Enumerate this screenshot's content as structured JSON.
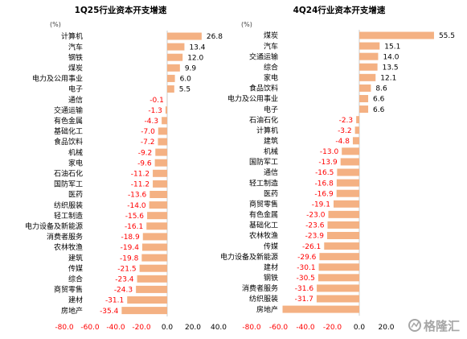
{
  "chart_data": [
    {
      "type": "bar",
      "orientation": "horizontal",
      "title": "1Q25行业资本开支增速",
      "unit": "(%)",
      "categories": [
        "计算机",
        "汽车",
        "钢铁",
        "煤炭",
        "电力及公用事业",
        "电子",
        "通信",
        "交通运输",
        "有色金属",
        "基础化工",
        "食品饮料",
        "机械",
        "家电",
        "石油石化",
        "国防军工",
        "医药",
        "纺织服装",
        "轻工制造",
        "电力设备及新能源",
        "消费者服务",
        "农林牧渔",
        "建筑",
        "传媒",
        "综合",
        "商贸零售",
        "建材",
        "房地产"
      ],
      "values": [
        26.8,
        13.4,
        12.0,
        9.9,
        6.0,
        5.5,
        -0.1,
        -1.3,
        -4.3,
        -7.0,
        -7.2,
        -9.2,
        -9.6,
        -11.2,
        -11.2,
        -13.6,
        -14.0,
        -15.6,
        -16.1,
        -18.9,
        -19.4,
        -19.8,
        -21.5,
        -23.4,
        -24.3,
        -31.1,
        -35.4
      ],
      "value_labels": [
        "26.8",
        "13.4",
        "12.0",
        "9.9",
        "6.0",
        "5.5",
        "-0.1",
        "-1.3",
        "-4.3",
        "-7.0",
        "-7.2",
        "-9.2",
        "-9.6",
        "-11.2",
        "-11.2",
        "-13.6",
        "-14.0",
        "-15.6",
        "-16.1",
        "-18.9",
        "-19.4",
        "-19.8",
        "-21.5",
        "-23.4",
        "-24.3",
        "-31.1",
        "-35.4"
      ],
      "xlim": [
        -80,
        40
      ],
      "xticks": [
        "-80.0",
        "-60.0",
        "-40.0",
        "-20.0",
        "0.0",
        "20.0",
        "40.0"
      ],
      "legend": false,
      "grid": false
    },
    {
      "type": "bar",
      "orientation": "horizontal",
      "title": "4Q24行业资本开支增速",
      "unit": "(%)",
      "categories": [
        "煤炭",
        "汽车",
        "交通运输",
        "综合",
        "家电",
        "食品饮料",
        "电力及公用事业",
        "电子",
        "石油石化",
        "计算机",
        "建筑",
        "机械",
        "国防军工",
        "通信",
        "轻工制造",
        "医药",
        "商贸零售",
        "有色金属",
        "基础化工",
        "农林牧渔",
        "传媒",
        "电力设备及新能源",
        "建材",
        "钢铁",
        "消费者服务",
        "纺织服装",
        "房地产"
      ],
      "values": [
        55.5,
        15.1,
        14.0,
        13.5,
        12.1,
        8.6,
        6.6,
        6.6,
        -2.3,
        -3.2,
        -4.8,
        -13.0,
        -13.9,
        -16.5,
        -16.8,
        -16.9,
        -19.1,
        -23.0,
        -23.6,
        -23.9,
        -26.1,
        -29.6,
        -30.1,
        -30.5,
        -31.6,
        -31.7,
        -57.0
      ],
      "value_labels": [
        "55.5",
        "15.1",
        "14.0",
        "13.5",
        "12.1",
        "8.6",
        "6.6",
        "6.6",
        "-2.3",
        "-3.2",
        "-4.8",
        "-13.0",
        "-13.9",
        "-16.5",
        "-16.8",
        "-16.9",
        "-19.1",
        "-23.0",
        "-23.6",
        "-23.9",
        "-26.1",
        "-29.6",
        "-30.1",
        "-30.5",
        "-31.6",
        "-31.7",
        null
      ],
      "xlim": [
        -80,
        60
      ],
      "xticks": [
        "-80.0",
        "-60.0",
        "-40.0",
        "-20.0",
        "0.0",
        "20.0"
      ],
      "legend": false,
      "grid": false
    }
  ],
  "colors": {
    "bar": "#F4B183",
    "positive_text": "#000000",
    "negative_text": "#FF0000",
    "axis": "#BFBFBF"
  },
  "watermark": {
    "text": "格隆汇",
    "icon": "gelonghui-logo-icon"
  }
}
